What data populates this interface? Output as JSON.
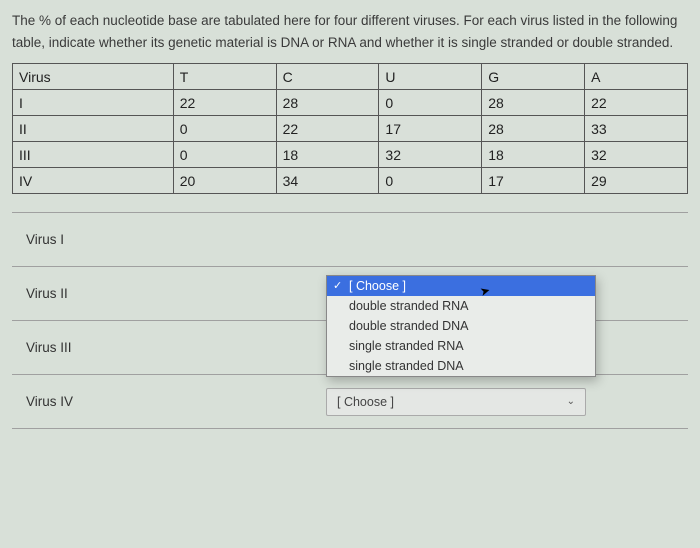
{
  "instructions": "The % of each nucleotide base are tabulated here for four different viruses. For each virus listed in the following table, indicate whether its genetic material is DNA or RNA and whether it is single stranded or double stranded.",
  "table": {
    "columns": [
      "Virus",
      "T",
      "C",
      "U",
      "G",
      "A"
    ],
    "rows": [
      [
        "I",
        "22",
        "28",
        "0",
        "28",
        "22"
      ],
      [
        "II",
        "0",
        "22",
        "17",
        "28",
        "33"
      ],
      [
        "III",
        "0",
        "18",
        "32",
        "18",
        "32"
      ],
      [
        "IV",
        "20",
        "34",
        "0",
        "17",
        "29"
      ]
    ]
  },
  "answers": [
    {
      "label": "Virus I"
    },
    {
      "label": "Virus II"
    },
    {
      "label": "Virus III"
    },
    {
      "label": "Virus IV"
    }
  ],
  "choose_placeholder": "[ Choose ]",
  "dropdown": {
    "options": [
      "[ Choose ]",
      "double stranded RNA",
      "double stranded DNA",
      "single stranded RNA",
      "single stranded DNA"
    ],
    "selected_index": 0
  },
  "colors": {
    "page_bg": "#d8e0d8",
    "border": "#555",
    "divider": "#a0a0a0",
    "highlight_bg": "#3b6fe0",
    "highlight_text": "#ffffff",
    "choose_bg": "#e4e7e4"
  }
}
